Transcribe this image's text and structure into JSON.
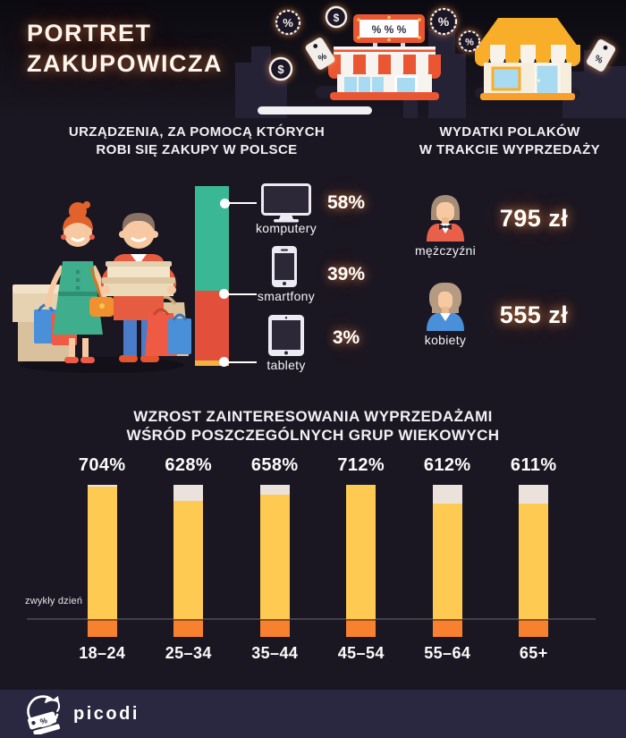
{
  "header": {
    "title_line1": "PORTRET",
    "title_line2": "ZAKUPOWICZA",
    "shop_sign": "% % %",
    "percent_glyph": "%",
    "dollar_glyph": "$"
  },
  "devices": {
    "title_line1": "URZĄDZENIA, ZA POMOCĄ KTÓRYCH",
    "title_line2": "ROBI SIĘ ZAKUPY W POLSCE",
    "items": [
      {
        "label": "komputery",
        "value_label": "58%"
      },
      {
        "label": "smartfony",
        "value_label": "39%"
      },
      {
        "label": "tablety",
        "value_label": "3%"
      }
    ]
  },
  "spending": {
    "title_line1": "WYDATKI POLAKÓW",
    "title_line2": "W TRAKCIE WYPRZEDAŻY",
    "items": [
      {
        "label": "mężczyźni",
        "value": "795 zł"
      },
      {
        "label": "kobiety",
        "value": "555 zł"
      }
    ]
  },
  "age_section": {
    "title_line1": "WZROST ZAINTERESOWANIA WYPRZEDAŻAMI",
    "title_line2": "WŚRÓD POSZCZEGÓLNYCH GRUP WIEKOWYCH"
  },
  "chart_data": [
    {
      "id": "devices-share",
      "type": "bar",
      "subtype": "stacked-single-column",
      "title": "URZĄDZENIA, ZA POMOCĄ KTÓRYCH ROBI SIĘ ZAKUPY W POLSCE",
      "categories": [
        "komputery",
        "smartfony",
        "tablety"
      ],
      "values": [
        58,
        39,
        3
      ],
      "unit": "%",
      "colors": [
        "#3ab795",
        "#e2503c",
        "#f2b23e"
      ],
      "legend_position": "right-callouts",
      "grid": false
    },
    {
      "id": "age-groups-growth",
      "type": "bar",
      "title": "WZROST ZAINTERESOWANIA WYPRZEDAŻAMI WŚRÓD POSZCZEGÓLNYCH GRUP WIEKOWYCH",
      "categories": [
        "18–24",
        "25–34",
        "35–44",
        "45–54",
        "55–64",
        "65+"
      ],
      "values": [
        704,
        628,
        658,
        712,
        612,
        611
      ],
      "value_labels": [
        "704%",
        "628%",
        "658%",
        "712%",
        "612%",
        "611%"
      ],
      "unit": "%",
      "ylim": [
        0,
        712
      ],
      "baseline_label": "zwykły dzień",
      "bar_color": "#ffca52",
      "cap_color": "#ebe2db",
      "below_baseline_color": "#f8812f",
      "grid": false
    },
    {
      "id": "spending-by-gender",
      "type": "table",
      "title": "WYDATKI POLAKÓW W TRAKCIE WYPRZEDAŻY",
      "rows": [
        [
          "mężczyźni",
          "795 zł"
        ],
        [
          "kobiety",
          "555 zł"
        ]
      ]
    }
  ],
  "footer": {
    "brand": "picodi"
  },
  "colors": {
    "background": "#1a1723",
    "footer_background": "#2a2840",
    "accent_orange": "#f8812f",
    "bar_yellow": "#ffca52",
    "green": "#3ab795",
    "red": "#e2503c",
    "glow": "#ff9146"
  }
}
